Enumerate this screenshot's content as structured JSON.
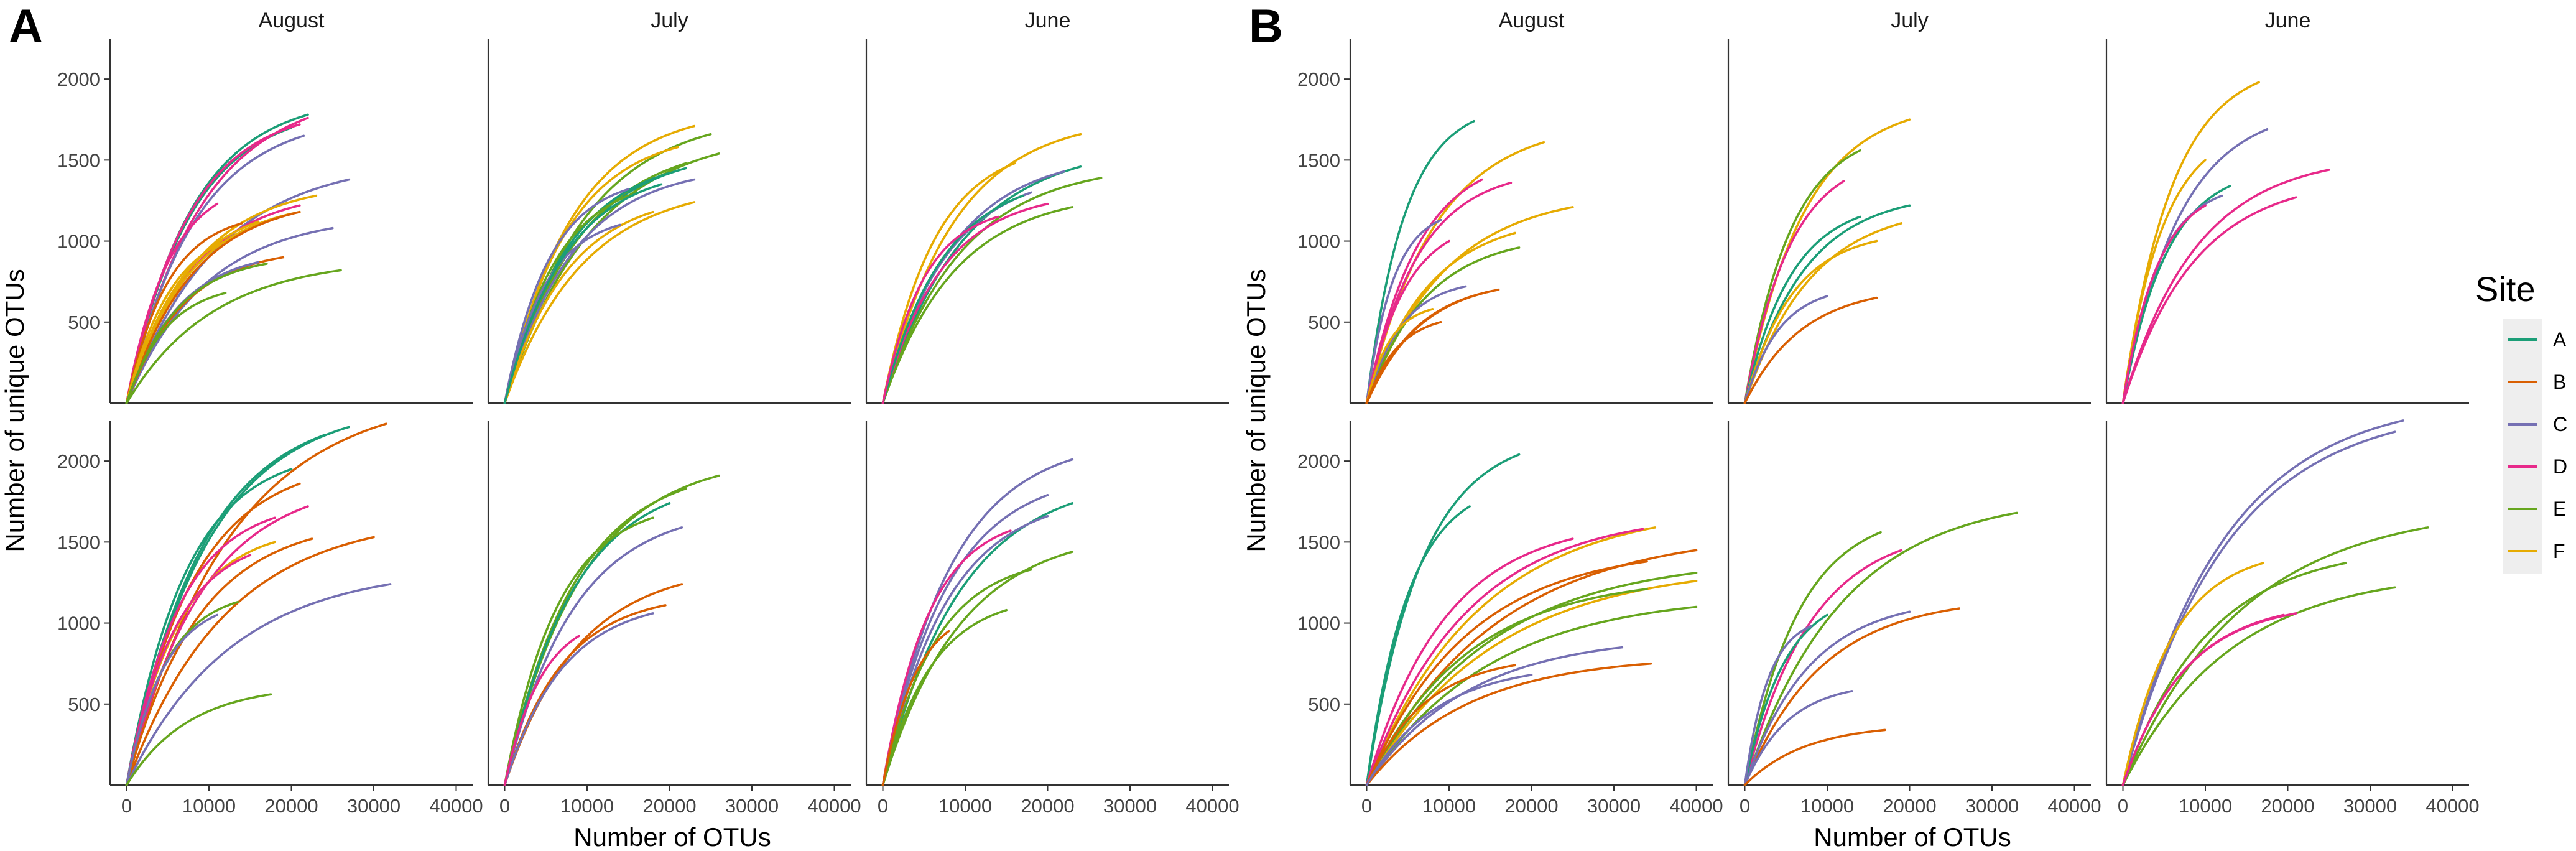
{
  "chart_data": {
    "type": "line",
    "description_source": "rarefaction-style curves, two figure parts (A, B), each a 2x3 facet grid",
    "panel_labels": [
      "A",
      "B"
    ],
    "facet_columns": [
      "August",
      "July",
      "June"
    ],
    "xlabel": "Number of OTUs",
    "ylabel": "Number of unique OTUs",
    "xlim": [
      -2000,
      42000
    ],
    "ylim": [
      0,
      2250
    ],
    "xticks": [
      0,
      10000,
      20000,
      30000,
      40000
    ],
    "yticks": [
      500,
      1000,
      1500,
      2000
    ],
    "xtick_labels": [
      "0",
      "10000",
      "20000",
      "30000",
      "40000"
    ],
    "ytick_labels": [
      "500",
      "1000",
      "1500",
      "2000"
    ],
    "legend": {
      "title": "Site",
      "position": "right",
      "entries": [
        {
          "label": "A",
          "color": "#1b9e77"
        },
        {
          "label": "B",
          "color": "#d95f02"
        },
        {
          "label": "C",
          "color": "#7570b3"
        },
        {
          "label": "D",
          "color": "#e7298a"
        },
        {
          "label": "E",
          "color": "#66a61e"
        },
        {
          "label": "F",
          "color": "#e6ab02"
        }
      ]
    },
    "curve_model": "y = ymax * (1 - exp(-x / k)), x from 0 to xmax",
    "panels": [
      {
        "part": "A",
        "row": 1,
        "col": "August",
        "curves": [
          {
            "site": "A",
            "xmax": 22000,
            "ymax": 1780
          },
          {
            "site": "A",
            "xmax": 20000,
            "ymax": 1700
          },
          {
            "site": "D",
            "xmax": 22000,
            "ymax": 1760
          },
          {
            "site": "D",
            "xmax": 21000,
            "ymax": 1720
          },
          {
            "site": "C",
            "xmax": 21500,
            "ymax": 1650
          },
          {
            "site": "C",
            "xmax": 27000,
            "ymax": 1380
          },
          {
            "site": "F",
            "xmax": 23000,
            "ymax": 1280
          },
          {
            "site": "D",
            "xmax": 21000,
            "ymax": 1220
          },
          {
            "site": "D",
            "xmax": 11000,
            "ymax": 1230
          },
          {
            "site": "F",
            "xmax": 21000,
            "ymax": 1180
          },
          {
            "site": "B",
            "xmax": 21000,
            "ymax": 1180
          },
          {
            "site": "F",
            "xmax": 16000,
            "ymax": 1120
          },
          {
            "site": "B",
            "xmax": 14000,
            "ymax": 1110
          },
          {
            "site": "C",
            "xmax": 25000,
            "ymax": 1080
          },
          {
            "site": "F",
            "xmax": 12000,
            "ymax": 1000
          },
          {
            "site": "B",
            "xmax": 19000,
            "ymax": 900
          },
          {
            "site": "C",
            "xmax": 16000,
            "ymax": 870
          },
          {
            "site": "E",
            "xmax": 26000,
            "ymax": 820
          },
          {
            "site": "E",
            "xmax": 17000,
            "ymax": 860
          },
          {
            "site": "E",
            "xmax": 12000,
            "ymax": 680
          }
        ]
      },
      {
        "part": "A",
        "row": 1,
        "col": "July",
        "curves": [
          {
            "site": "F",
            "xmax": 23000,
            "ymax": 1710
          },
          {
            "site": "E",
            "xmax": 25000,
            "ymax": 1660
          },
          {
            "site": "E",
            "xmax": 26000,
            "ymax": 1540
          },
          {
            "site": "F",
            "xmax": 21000,
            "ymax": 1580
          },
          {
            "site": "A",
            "xmax": 22000,
            "ymax": 1450
          },
          {
            "site": "E",
            "xmax": 22000,
            "ymax": 1480
          },
          {
            "site": "C",
            "xmax": 23000,
            "ymax": 1380
          },
          {
            "site": "A",
            "xmax": 20000,
            "ymax": 1420
          },
          {
            "site": "F",
            "xmax": 23000,
            "ymax": 1240
          },
          {
            "site": "C",
            "xmax": 15000,
            "ymax": 1320
          },
          {
            "site": "E",
            "xmax": 16000,
            "ymax": 1300
          },
          {
            "site": "F",
            "xmax": 18000,
            "ymax": 1180
          },
          {
            "site": "C",
            "xmax": 14000,
            "ymax": 1100
          },
          {
            "site": "A",
            "xmax": 19000,
            "ymax": 1350
          }
        ]
      },
      {
        "part": "A",
        "row": 1,
        "col": "June",
        "curves": [
          {
            "site": "F",
            "xmax": 24000,
            "ymax": 1660
          },
          {
            "site": "F",
            "xmax": 16000,
            "ymax": 1480
          },
          {
            "site": "A",
            "xmax": 24000,
            "ymax": 1460
          },
          {
            "site": "E",
            "xmax": 26500,
            "ymax": 1390
          },
          {
            "site": "C",
            "xmax": 22000,
            "ymax": 1430
          },
          {
            "site": "C",
            "xmax": 18000,
            "ymax": 1300
          },
          {
            "site": "D",
            "xmax": 20000,
            "ymax": 1230
          },
          {
            "site": "E",
            "xmax": 23000,
            "ymax": 1210
          },
          {
            "site": "A",
            "xmax": 17000,
            "ymax": 1280
          },
          {
            "site": "D",
            "xmax": 14000,
            "ymax": 1150
          }
        ]
      },
      {
        "part": "A",
        "row": 2,
        "col": "August",
        "curves": [
          {
            "site": "A",
            "xmax": 27000,
            "ymax": 2210
          },
          {
            "site": "A",
            "xmax": 24000,
            "ymax": 2160
          },
          {
            "site": "B",
            "xmax": 31500,
            "ymax": 2230
          },
          {
            "site": "A",
            "xmax": 20000,
            "ymax": 1950
          },
          {
            "site": "B",
            "xmax": 21000,
            "ymax": 1860
          },
          {
            "site": "D",
            "xmax": 22000,
            "ymax": 1720
          },
          {
            "site": "D",
            "xmax": 18000,
            "ymax": 1650
          },
          {
            "site": "B",
            "xmax": 22500,
            "ymax": 1520
          },
          {
            "site": "B",
            "xmax": 30000,
            "ymax": 1530
          },
          {
            "site": "F",
            "xmax": 18000,
            "ymax": 1500
          },
          {
            "site": "D",
            "xmax": 15000,
            "ymax": 1420
          },
          {
            "site": "C",
            "xmax": 32000,
            "ymax": 1240
          },
          {
            "site": "E",
            "xmax": 13500,
            "ymax": 1130
          },
          {
            "site": "C",
            "xmax": 11000,
            "ymax": 1050
          },
          {
            "site": "E",
            "xmax": 17500,
            "ymax": 560
          }
        ]
      },
      {
        "part": "A",
        "row": 2,
        "col": "July",
        "curves": [
          {
            "site": "E",
            "xmax": 26000,
            "ymax": 1910
          },
          {
            "site": "E",
            "xmax": 22000,
            "ymax": 1830
          },
          {
            "site": "A",
            "xmax": 20000,
            "ymax": 1740
          },
          {
            "site": "E",
            "xmax": 18000,
            "ymax": 1650
          },
          {
            "site": "C",
            "xmax": 21500,
            "ymax": 1590
          },
          {
            "site": "B",
            "xmax": 21500,
            "ymax": 1240
          },
          {
            "site": "B",
            "xmax": 19500,
            "ymax": 1110
          },
          {
            "site": "C",
            "xmax": 18000,
            "ymax": 1060
          },
          {
            "site": "D",
            "xmax": 9000,
            "ymax": 920
          }
        ]
      },
      {
        "part": "A",
        "row": 2,
        "col": "June",
        "curves": [
          {
            "site": "C",
            "xmax": 23000,
            "ymax": 2010
          },
          {
            "site": "C",
            "xmax": 20000,
            "ymax": 1790
          },
          {
            "site": "A",
            "xmax": 23000,
            "ymax": 1740
          },
          {
            "site": "D",
            "xmax": 15500,
            "ymax": 1570
          },
          {
            "site": "C",
            "xmax": 20000,
            "ymax": 1660
          },
          {
            "site": "E",
            "xmax": 23000,
            "ymax": 1440
          },
          {
            "site": "E",
            "xmax": 18000,
            "ymax": 1330
          },
          {
            "site": "E",
            "xmax": 15000,
            "ymax": 1080
          },
          {
            "site": "B",
            "xmax": 8000,
            "ymax": 950
          }
        ]
      },
      {
        "part": "B",
        "row": 1,
        "col": "August",
        "curves": [
          {
            "site": "A",
            "xmax": 13000,
            "ymax": 1740
          },
          {
            "site": "F",
            "xmax": 21500,
            "ymax": 1610
          },
          {
            "site": "D",
            "xmax": 14000,
            "ymax": 1380
          },
          {
            "site": "D",
            "xmax": 17500,
            "ymax": 1360
          },
          {
            "site": "F",
            "xmax": 25000,
            "ymax": 1210
          },
          {
            "site": "F",
            "xmax": 18000,
            "ymax": 1050
          },
          {
            "site": "C",
            "xmax": 9000,
            "ymax": 1130
          },
          {
            "site": "E",
            "xmax": 18500,
            "ymax": 960
          },
          {
            "site": "D",
            "xmax": 10000,
            "ymax": 1000
          },
          {
            "site": "C",
            "xmax": 12000,
            "ymax": 720
          },
          {
            "site": "B",
            "xmax": 16000,
            "ymax": 700
          },
          {
            "site": "B",
            "xmax": 15000,
            "ymax": 690
          },
          {
            "site": "F",
            "xmax": 8000,
            "ymax": 580
          },
          {
            "site": "B",
            "xmax": 9000,
            "ymax": 500
          }
        ]
      },
      {
        "part": "B",
        "row": 1,
        "col": "July",
        "curves": [
          {
            "site": "F",
            "xmax": 20000,
            "ymax": 1750
          },
          {
            "site": "E",
            "xmax": 14000,
            "ymax": 1560
          },
          {
            "site": "D",
            "xmax": 12000,
            "ymax": 1370
          },
          {
            "site": "A",
            "xmax": 20000,
            "ymax": 1220
          },
          {
            "site": "A",
            "xmax": 14000,
            "ymax": 1150
          },
          {
            "site": "F",
            "xmax": 19000,
            "ymax": 1110
          },
          {
            "site": "F",
            "xmax": 16000,
            "ymax": 1000
          },
          {
            "site": "C",
            "xmax": 10000,
            "ymax": 660
          },
          {
            "site": "B",
            "xmax": 16000,
            "ymax": 650
          }
        ]
      },
      {
        "part": "B",
        "row": 1,
        "col": "June",
        "curves": [
          {
            "site": "F",
            "xmax": 16500,
            "ymax": 1980
          },
          {
            "site": "C",
            "xmax": 17500,
            "ymax": 1690
          },
          {
            "site": "F",
            "xmax": 10000,
            "ymax": 1500
          },
          {
            "site": "D",
            "xmax": 25000,
            "ymax": 1440
          },
          {
            "site": "A",
            "xmax": 13000,
            "ymax": 1340
          },
          {
            "site": "D",
            "xmax": 21000,
            "ymax": 1270
          },
          {
            "site": "C",
            "xmax": 12000,
            "ymax": 1280
          },
          {
            "site": "D",
            "xmax": 10000,
            "ymax": 1220
          }
        ]
      },
      {
        "part": "B",
        "row": 2,
        "col": "August",
        "curves": [
          {
            "site": "A",
            "xmax": 18500,
            "ymax": 2040
          },
          {
            "site": "A",
            "xmax": 12500,
            "ymax": 1720
          },
          {
            "site": "F",
            "xmax": 35000,
            "ymax": 1590
          },
          {
            "site": "D",
            "xmax": 33500,
            "ymax": 1580
          },
          {
            "site": "D",
            "xmax": 25000,
            "ymax": 1520
          },
          {
            "site": "B",
            "xmax": 40000,
            "ymax": 1450
          },
          {
            "site": "B",
            "xmax": 34000,
            "ymax": 1380
          },
          {
            "site": "E",
            "xmax": 40000,
            "ymax": 1310
          },
          {
            "site": "F",
            "xmax": 40000,
            "ymax": 1260
          },
          {
            "site": "E",
            "xmax": 34000,
            "ymax": 1210
          },
          {
            "site": "E",
            "xmax": 40000,
            "ymax": 1100
          },
          {
            "site": "C",
            "xmax": 31000,
            "ymax": 850
          },
          {
            "site": "B",
            "xmax": 34500,
            "ymax": 750
          },
          {
            "site": "B",
            "xmax": 18000,
            "ymax": 740
          },
          {
            "site": "C",
            "xmax": 20000,
            "ymax": 680
          }
        ]
      },
      {
        "part": "B",
        "row": 2,
        "col": "July",
        "curves": [
          {
            "site": "E",
            "xmax": 33000,
            "ymax": 1680
          },
          {
            "site": "E",
            "xmax": 16500,
            "ymax": 1560
          },
          {
            "site": "D",
            "xmax": 19000,
            "ymax": 1450
          },
          {
            "site": "B",
            "xmax": 26000,
            "ymax": 1090
          },
          {
            "site": "C",
            "xmax": 20000,
            "ymax": 1070
          },
          {
            "site": "A",
            "xmax": 10000,
            "ymax": 1050
          },
          {
            "site": "C",
            "xmax": 8000,
            "ymax": 980
          },
          {
            "site": "C",
            "xmax": 13000,
            "ymax": 580
          },
          {
            "site": "B",
            "xmax": 17000,
            "ymax": 340
          }
        ]
      },
      {
        "part": "B",
        "row": 2,
        "col": "June",
        "curves": [
          {
            "site": "C",
            "xmax": 34000,
            "ymax": 2250
          },
          {
            "site": "C",
            "xmax": 33000,
            "ymax": 2180
          },
          {
            "site": "E",
            "xmax": 37000,
            "ymax": 1590
          },
          {
            "site": "F",
            "xmax": 17000,
            "ymax": 1370
          },
          {
            "site": "E",
            "xmax": 27000,
            "ymax": 1370
          },
          {
            "site": "E",
            "xmax": 33000,
            "ymax": 1220
          },
          {
            "site": "D",
            "xmax": 21000,
            "ymax": 1060
          },
          {
            "site": "D",
            "xmax": 19500,
            "ymax": 1050
          }
        ]
      }
    ]
  }
}
